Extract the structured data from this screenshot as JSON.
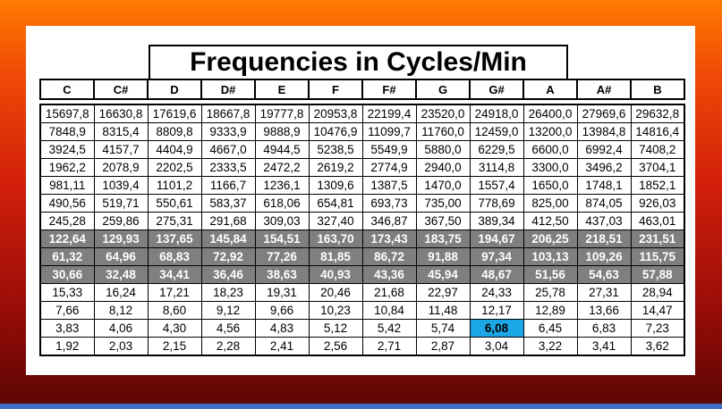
{
  "title": "Frequencies in Cycles/Min",
  "notes": [
    "C",
    "C#",
    "D",
    "D#",
    "E",
    "F",
    "F#",
    "G",
    "G#",
    "A",
    "A#",
    "B"
  ],
  "rows": [
    {
      "dark": false,
      "values": [
        "15697,8",
        "16630,8",
        "17619,6",
        "18667,8",
        "19777,8",
        "20953,8",
        "22199,4",
        "23520,0",
        "24918,0",
        "26400,0",
        "27969,6",
        "29632,8"
      ]
    },
    {
      "dark": false,
      "values": [
        "7848,9",
        "8315,4",
        "8809,8",
        "9333,9",
        "9888,9",
        "10476,9",
        "11099,7",
        "11760,0",
        "12459,0",
        "13200,0",
        "13984,8",
        "14816,4"
      ]
    },
    {
      "dark": false,
      "values": [
        "3924,5",
        "4157,7",
        "4404,9",
        "4667,0",
        "4944,5",
        "5238,5",
        "5549,9",
        "5880,0",
        "6229,5",
        "6600,0",
        "6992,4",
        "7408,2"
      ]
    },
    {
      "dark": false,
      "values": [
        "1962,2",
        "2078,9",
        "2202,5",
        "2333,5",
        "2472,2",
        "2619,2",
        "2774,9",
        "2940,0",
        "3114,8",
        "3300,0",
        "3496,2",
        "3704,1"
      ]
    },
    {
      "dark": false,
      "values": [
        "981,11",
        "1039,4",
        "1101,2",
        "1166,7",
        "1236,1",
        "1309,6",
        "1387,5",
        "1470,0",
        "1557,4",
        "1650,0",
        "1748,1",
        "1852,1"
      ]
    },
    {
      "dark": false,
      "values": [
        "490,56",
        "519,71",
        "550,61",
        "583,37",
        "618,06",
        "654,81",
        "693,73",
        "735,00",
        "778,69",
        "825,00",
        "874,05",
        "926,03"
      ]
    },
    {
      "dark": false,
      "values": [
        "245,28",
        "259,86",
        "275,31",
        "291,68",
        "309,03",
        "327,40",
        "346,87",
        "367,50",
        "389,34",
        "412,50",
        "437,03",
        "463,01"
      ]
    },
    {
      "dark": true,
      "values": [
        "122,64",
        "129,93",
        "137,65",
        "145,84",
        "154,51",
        "163,70",
        "173,43",
        "183,75",
        "194,67",
        "206,25",
        "218,51",
        "231,51"
      ]
    },
    {
      "dark": true,
      "values": [
        "61,32",
        "64,96",
        "68,83",
        "72,92",
        "77,26",
        "81,85",
        "86,72",
        "91,88",
        "97,34",
        "103,13",
        "109,26",
        "115,75"
      ]
    },
    {
      "dark": true,
      "values": [
        "30,66",
        "32,48",
        "34,41",
        "36,46",
        "38,63",
        "40,93",
        "43,36",
        "45,94",
        "48,67",
        "51,56",
        "54,63",
        "57,88"
      ]
    },
    {
      "dark": false,
      "values": [
        "15,33",
        "16,24",
        "17,21",
        "18,23",
        "19,31",
        "20,46",
        "21,68",
        "22,97",
        "24,33",
        "25,78",
        "27,31",
        "28,94"
      ]
    },
    {
      "dark": false,
      "values": [
        "7,66",
        "8,12",
        "8,60",
        "9,12",
        "9,66",
        "10,23",
        "10,84",
        "11,48",
        "12,17",
        "12,89",
        "13,66",
        "14,47"
      ]
    },
    {
      "dark": false,
      "values": [
        "3,83",
        "4,06",
        "4,30",
        "4,56",
        "4,83",
        "5,12",
        "5,42",
        "5,74",
        "6,08",
        "6,45",
        "6,83",
        "7,23"
      ]
    },
    {
      "dark": false,
      "values": [
        "1,92",
        "2,03",
        "2,15",
        "2,28",
        "2,41",
        "2,56",
        "2,71",
        "2,87",
        "3,04",
        "3,22",
        "3,41",
        "3,62"
      ]
    }
  ],
  "highlight": {
    "row": 12,
    "col": 8,
    "color": "#1ca7e6"
  },
  "colors": {
    "dark_row": "#7f7f7f",
    "background_top": "#ff7a00",
    "background_bottom": "#5a0503"
  }
}
